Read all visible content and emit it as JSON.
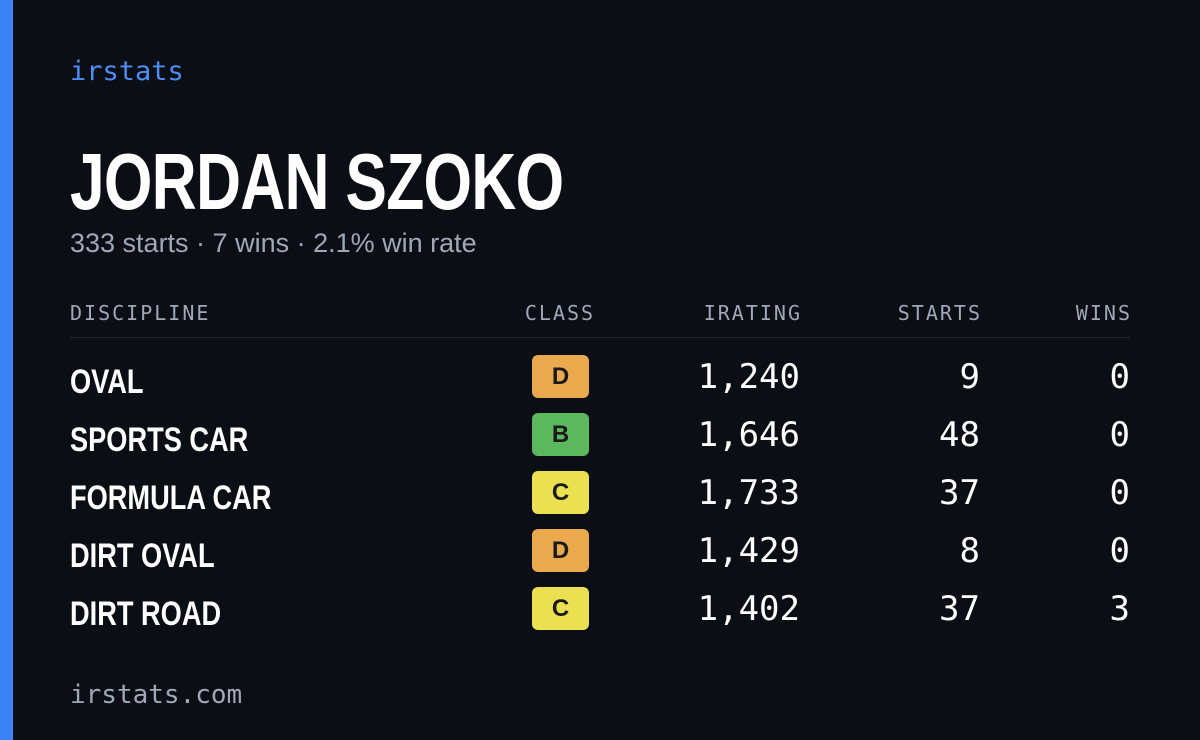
{
  "header": {
    "brand": "irstats",
    "name": "JORDAN SZOKO",
    "summary": "333 starts · 7 wins · 2.1% win rate"
  },
  "table": {
    "columns": [
      "DISCIPLINE",
      "CLASS",
      "IRATING",
      "STARTS",
      "WINS"
    ],
    "rows": [
      [
        "OVAL",
        "D",
        "1,240",
        "9",
        "0"
      ],
      [
        "SPORTS CAR",
        "B",
        "1,646",
        "48",
        "0"
      ],
      [
        "FORMULA CAR",
        "C",
        "1,733",
        "37",
        "0"
      ],
      [
        "DIRT OVAL",
        "D",
        "1,429",
        "8",
        "0"
      ],
      [
        "DIRT ROAD",
        "C",
        "1,402",
        "37",
        "3"
      ]
    ],
    "class_colors": {
      "B": "#5cb85c",
      "C": "#ebe04f",
      "D": "#eaa94c"
    }
  },
  "footer": {
    "url": "irstats.com"
  }
}
